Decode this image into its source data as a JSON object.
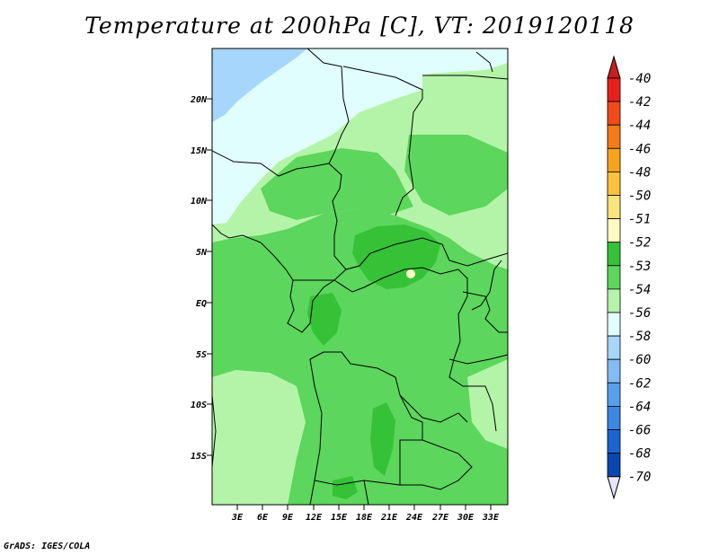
{
  "title": "Temperature at 200hPa [C], VT: 2019120118",
  "credit": "GrADS: IGES/COLA",
  "map": {
    "lat_labels": [
      "20N",
      "15N",
      "10N",
      "5N",
      "EQ",
      "5S",
      "10S",
      "15S"
    ],
    "lon_labels": [
      "3E",
      "6E",
      "9E",
      "12E",
      "15E",
      "18E",
      "21E",
      "24E",
      "27E",
      "30E",
      "33E"
    ]
  },
  "colorbar": {
    "levels": [
      {
        "label": "-40",
        "color": "#e8201c"
      },
      {
        "label": "-42",
        "color": "#f24a1a"
      },
      {
        "label": "-44",
        "color": "#f57a18"
      },
      {
        "label": "-46",
        "color": "#f7a41c"
      },
      {
        "label": "-48",
        "color": "#fbc23b"
      },
      {
        "label": "-50",
        "color": "#fde37c"
      },
      {
        "label": "-51",
        "color": "#fffac2"
      },
      {
        "label": "-52",
        "color": "#36c236"
      },
      {
        "label": "-53",
        "color": "#5cd65c"
      },
      {
        "label": "-54",
        "color": "#b4f4a8"
      },
      {
        "label": "-56",
        "color": "#e0fefe"
      },
      {
        "label": "-58",
        "color": "#a6d6fb"
      },
      {
        "label": "-60",
        "color": "#82bcf4"
      },
      {
        "label": "-62",
        "color": "#58a0ee"
      },
      {
        "label": "-64",
        "color": "#3c86e4"
      },
      {
        "label": "-66",
        "color": "#1e64d0"
      },
      {
        "label": "-68",
        "color": "#0a46b0"
      },
      {
        "label": "-70",
        "color": "#062a86"
      }
    ],
    "top_triangle_color": "#c81e1e",
    "bottom_triangle_color": "#e6e6ff"
  }
}
